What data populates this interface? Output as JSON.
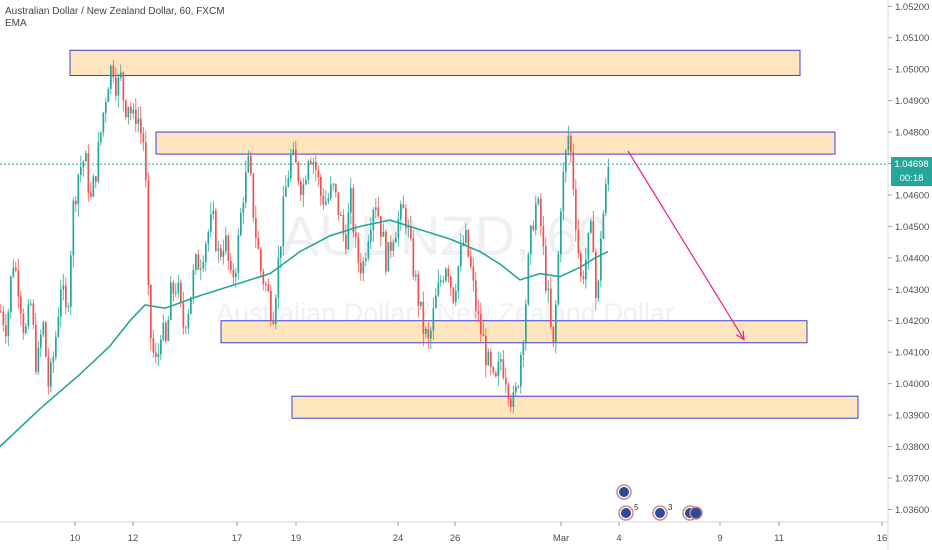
{
  "header": {
    "title": "Australian Dollar / New Zealand Dollar, 60, FXCM",
    "indicator": "EMA"
  },
  "watermark": {
    "symbol": "AUDNZD, 60",
    "name": "Australian Dollar / New Zealand Dollar"
  },
  "price_axis": {
    "current_price": "1.04698",
    "countdown": "00:18"
  },
  "colors": {
    "up": "#26a69a",
    "down": "#ef5350",
    "ema": "#26a69a",
    "zone_fill": "#ffe0b2",
    "zone_border": "#3f3fd6",
    "arrow": "#e91e8c",
    "current_price_line": "#26a69a"
  },
  "events": [
    {
      "badge": "",
      "icon": "flag-icon"
    },
    {
      "badge": "5",
      "icon": "flag-icon"
    },
    {
      "badge": "3",
      "icon": "flag-icon"
    },
    {
      "badge": "",
      "icon": "flag-icon"
    }
  ],
  "chart_data": {
    "type": "candlestick",
    "title": "Australian Dollar / New Zealand Dollar, 60, FXCM",
    "y_ticks": [
      "1.05200",
      "1.05100",
      "1.05000",
      "1.04900",
      "1.04800",
      "1.04700",
      "1.04600",
      "1.04500",
      "1.04400",
      "1.04300",
      "1.04200",
      "1.04100",
      "1.04000",
      "1.03900",
      "1.03800",
      "1.03700",
      "1.03600"
    ],
    "x_ticks": [
      "10",
      "12",
      "17",
      "19",
      "24",
      "26",
      "Mar",
      "4",
      "9",
      "11",
      "16"
    ],
    "ylim": [
      1.0356,
      1.0522
    ],
    "current_price": 1.04698,
    "close_path": [
      [
        0,
        1.0423
      ],
      [
        6,
        1.0418
      ],
      [
        12,
        1.044
      ],
      [
        18,
        1.0431
      ],
      [
        24,
        1.0415
      ],
      [
        30,
        1.0425
      ],
      [
        36,
        1.0404
      ],
      [
        42,
        1.042
      ],
      [
        48,
        1.0398
      ],
      [
        54,
        1.0412
      ],
      [
        60,
        1.0432
      ],
      [
        66,
        1.042
      ],
      [
        72,
        1.0455
      ],
      [
        78,
        1.0468
      ],
      [
        84,
        1.0472
      ],
      [
        90,
        1.0458
      ],
      [
        96,
        1.047
      ],
      [
        100,
        1.048
      ],
      [
        104,
        1.049
      ],
      [
        108,
        1.0498
      ],
      [
        112,
        1.0502
      ],
      [
        116,
        1.0494
      ],
      [
        120,
        1.0497
      ],
      [
        124,
        1.0488
      ],
      [
        128,
        1.049
      ],
      [
        132,
        1.0483
      ],
      [
        136,
        1.0487
      ],
      [
        140,
        1.048
      ],
      [
        144,
        1.0476
      ],
      [
        148,
        1.042
      ],
      [
        152,
        1.041
      ],
      [
        156,
        1.0405
      ],
      [
        160,
        1.0418
      ],
      [
        165,
        1.0412
      ],
      [
        170,
        1.0428
      ],
      [
        176,
        1.0432
      ],
      [
        182,
        1.0418
      ],
      [
        188,
        1.0425
      ],
      [
        194,
        1.0437
      ],
      [
        200,
        1.044
      ],
      [
        206,
        1.0447
      ],
      [
        212,
        1.0452
      ],
      [
        218,
        1.044
      ],
      [
        224,
        1.0447
      ],
      [
        230,
        1.0432
      ],
      [
        236,
        1.044
      ],
      [
        242,
        1.046
      ],
      [
        248,
        1.047
      ],
      [
        254,
        1.045
      ],
      [
        260,
        1.0436
      ],
      [
        266,
        1.043
      ],
      [
        272,
        1.0422
      ],
      [
        278,
        1.044
      ],
      [
        284,
        1.046
      ],
      [
        290,
        1.0472
      ],
      [
        296,
        1.0468
      ],
      [
        302,
        1.0462
      ],
      [
        308,
        1.0475
      ],
      [
        314,
        1.047
      ],
      [
        320,
        1.046
      ],
      [
        326,
        1.0458
      ],
      [
        332,
        1.0462
      ],
      [
        338,
        1.0455
      ],
      [
        344,
        1.0445
      ],
      [
        350,
        1.0458
      ],
      [
        356,
        1.044
      ],
      [
        362,
        1.0437
      ],
      [
        368,
        1.045
      ],
      [
        374,
        1.046
      ],
      [
        380,
        1.045
      ],
      [
        386,
        1.0438
      ],
      [
        392,
        1.0448
      ],
      [
        398,
        1.0452
      ],
      [
        404,
        1.0455
      ],
      [
        410,
        1.0442
      ],
      [
        416,
        1.043
      ],
      [
        422,
        1.0418
      ],
      [
        428,
        1.0412
      ],
      [
        434,
        1.0425
      ],
      [
        440,
        1.0433
      ],
      [
        446,
        1.044
      ],
      [
        452,
        1.0428
      ],
      [
        458,
        1.0438
      ],
      [
        464,
        1.0447
      ],
      [
        470,
        1.0436
      ],
      [
        476,
        1.0422
      ],
      [
        482,
        1.0414
      ],
      [
        488,
        1.0405
      ],
      [
        494,
        1.0398
      ],
      [
        500,
        1.0408
      ],
      [
        506,
        1.0402
      ],
      [
        512,
        1.0393
      ],
      [
        516,
        1.0398
      ],
      [
        520,
        1.041
      ],
      [
        524,
        1.0422
      ],
      [
        528,
        1.044
      ],
      [
        532,
        1.0452
      ],
      [
        536,
        1.0458
      ],
      [
        540,
        1.045
      ],
      [
        544,
        1.0436
      ],
      [
        548,
        1.0425
      ],
      [
        552,
        1.0408
      ],
      [
        556,
        1.043
      ],
      [
        560,
        1.0458
      ],
      [
        564,
        1.047
      ],
      [
        568,
        1.048
      ],
      [
        572,
        1.0466
      ],
      [
        576,
        1.0448
      ],
      [
        580,
        1.0433
      ],
      [
        584,
        1.0438
      ],
      [
        588,
        1.0445
      ],
      [
        592,
        1.045
      ],
      [
        596,
        1.042
      ],
      [
        600,
        1.0448
      ],
      [
        604,
        1.0458
      ],
      [
        608,
        1.047
      ]
    ],
    "ema_path": [
      [
        0,
        1.038
      ],
      [
        40,
        1.0392
      ],
      [
        80,
        1.0403
      ],
      [
        110,
        1.0412
      ],
      [
        130,
        1.042
      ],
      [
        145,
        1.0425
      ],
      [
        165,
        1.0424
      ],
      [
        200,
        1.0428
      ],
      [
        240,
        1.0432
      ],
      [
        270,
        1.0435
      ],
      [
        300,
        1.0442
      ],
      [
        330,
        1.0447
      ],
      [
        360,
        1.045
      ],
      [
        390,
        1.0452
      ],
      [
        420,
        1.0449
      ],
      [
        450,
        1.0446
      ],
      [
        480,
        1.0442
      ],
      [
        500,
        1.0438
      ],
      [
        520,
        1.0433
      ],
      [
        540,
        1.0435
      ],
      [
        560,
        1.0434
      ],
      [
        580,
        1.0437
      ],
      [
        595,
        1.044
      ],
      [
        608,
        1.0442
      ]
    ],
    "zones": [
      {
        "x1": 70,
        "x2": 800,
        "y_low": 1.0498,
        "y_high": 1.0506
      },
      {
        "x1": 156,
        "x2": 835,
        "y_low": 1.0473,
        "y_high": 1.048
      },
      {
        "x1": 221,
        "x2": 807,
        "y_low": 1.0413,
        "y_high": 1.042
      },
      {
        "x1": 292,
        "x2": 858,
        "y_low": 1.0389,
        "y_high": 1.0396
      }
    ],
    "projection_arrow": {
      "from": [
        628,
        1.0474
      ],
      "to": [
        744,
        1.0414
      ]
    }
  }
}
